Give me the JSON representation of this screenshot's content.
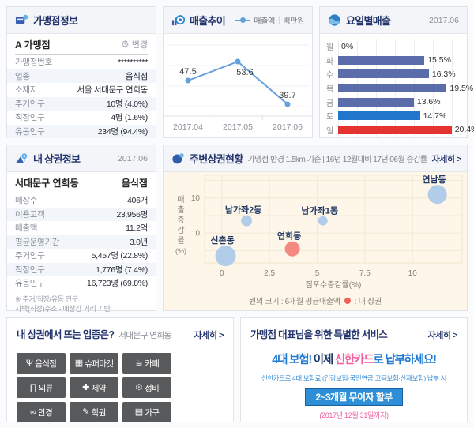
{
  "merchant_info": {
    "title": "가맹점정보",
    "store_name": "A 가맹점",
    "gear_glyph": "⚙",
    "change_label": "변경",
    "rows": [
      {
        "label": "가맹점번호",
        "value": "**********"
      },
      {
        "label": "업종",
        "value": "음식점"
      },
      {
        "label": "소재지",
        "value": "서울 서대문구 연희동"
      },
      {
        "label": "주거인구",
        "value": "10명 (4.0%)"
      },
      {
        "label": "직장인구",
        "value": "4명 (1.6%)"
      },
      {
        "label": "유동인구",
        "value": "234명 (94.4%)"
      }
    ]
  },
  "sales_trend": {
    "title": "매출추이",
    "legend_label": "매출액",
    "legend_separator": "|",
    "legend_unit": "백만원"
  },
  "weekday_sales": {
    "title": "요일별매출",
    "period": "2017.06"
  },
  "my_area": {
    "title": "내 상권정보",
    "period": "2017.06",
    "region": "서대문구 연희동",
    "category": "음식점",
    "rows": [
      {
        "label": "매장수",
        "value": "406개"
      },
      {
        "label": "이용고객",
        "value": "23,956명"
      },
      {
        "label": "매출액",
        "value": "11.2억"
      },
      {
        "label": "평균운영기간",
        "value": "3.0년"
      },
      {
        "label": "주거인구",
        "value": "5,457명 (22.8%)"
      },
      {
        "label": "직장인구",
        "value": "1,776명 (7.4%)"
      },
      {
        "label": "유동인구",
        "value": "16,723명 (69.8%)"
      }
    ],
    "footnote_line1": "※ 주거/직장/유동 인구 :",
    "footnote_line2": "자택(직장)주소 - 매장간 거리 기반"
  },
  "nearby": {
    "title": "주변상권현황",
    "subtitle": "가맹점 반경 1.5km 기준 | 16년 12월대비 17년 06월 증감률",
    "detail_label": "자세히 >"
  },
  "trending": {
    "title": "내 상권에서 뜨는 업종은?",
    "region": "서대문구 연희동",
    "detail_label": "자세히 >",
    "categories": [
      {
        "icon": "restaurant-icon",
        "glyph": "Ψ",
        "label": "음식점"
      },
      {
        "icon": "supermarket-icon",
        "glyph": "▦",
        "label": "슈퍼마켓"
      },
      {
        "icon": "cafe-icon",
        "glyph": "☕",
        "label": "카페"
      },
      {
        "icon": "clothing-icon",
        "glyph": "∏",
        "label": "의류"
      },
      {
        "icon": "pharmacy-icon",
        "glyph": "✚",
        "label": "제약"
      },
      {
        "icon": "repair-icon",
        "glyph": "⚙",
        "label": "정비"
      },
      {
        "icon": "glasses-icon",
        "glyph": "∞",
        "label": "안경"
      },
      {
        "icon": "academy-icon",
        "glyph": "✎",
        "label": "학원"
      },
      {
        "icon": "furniture-icon",
        "glyph": "▤",
        "label": "가구"
      }
    ]
  },
  "service_ad": {
    "title": "가맹점 대표님을 위한 특별한 서비스",
    "detail_label": "자세히 >",
    "headline_parts": [
      {
        "text": "4대 보험!",
        "color": "#1f7ad2"
      },
      {
        "text": " 이제 ",
        "color": "#1c3a6e"
      },
      {
        "text": "신한카드",
        "color": "#f0609e"
      },
      {
        "text": "로 ",
        "color": "#1f7ad2"
      },
      {
        "text": "납부하세요!",
        "color": "#1f7ad2"
      }
    ],
    "subline": "신한카드로 4대 보험료 (건강보험·국민연금·고용보험·산재보험) 납부 시",
    "badge": "2~3개월 무이자 할부",
    "period_note": "(2017년 12월 31일까지)"
  },
  "chart_data": [
    {
      "type": "line",
      "title": "매출추이",
      "unit": "백만원",
      "x": [
        "2017.04",
        "2017.05",
        "2017.06"
      ],
      "series": [
        {
          "name": "매출액",
          "values": [
            47.5,
            53.6,
            39.7
          ]
        }
      ],
      "line_color": "#64a0dc",
      "ylim": [
        37,
        57
      ],
      "grid": true
    },
    {
      "type": "bar",
      "title": "요일별매출",
      "period": "2017.06",
      "unit": "%",
      "orientation": "horizontal",
      "categories": [
        "월",
        "화",
        "수",
        "목",
        "금",
        "토",
        "일"
      ],
      "values": [
        0,
        15.5,
        16.3,
        19.5,
        13.6,
        14.7,
        20.4
      ],
      "bar_colors": [
        "#5b6caa",
        "#5b6caa",
        "#5b6caa",
        "#5b6caa",
        "#5b6caa",
        "#2277cc",
        "#e43331"
      ],
      "xlim": [
        0,
        22
      ]
    },
    {
      "type": "scatter",
      "title": "주변상권현황",
      "xlabel": "점포수증감률(%)",
      "ylabel": "매출증감률(%)",
      "xticks": [
        0,
        2.5,
        5,
        7.5,
        10
      ],
      "yticks": [
        10,
        0
      ],
      "xlim": [
        -0.9,
        12.6
      ],
      "ylim": [
        -8.5,
        16
      ],
      "size_note": "원의 크기 : 6개월 평균매출액",
      "my_area_note": ": 내 상권",
      "point_colors": {
        "other": "#a9c9e9",
        "my": "#f37d76"
      },
      "points": [
        {
          "name": "신촌동",
          "x": 0.2,
          "y": -6.5,
          "r": 13,
          "kind": "other"
        },
        {
          "name": "연희동",
          "x": 3.7,
          "y": -4.5,
          "r": 9.5,
          "kind": "my"
        },
        {
          "name": "남가좌2동",
          "x": 1.3,
          "y": 3.5,
          "r": 7,
          "kind": "other"
        },
        {
          "name": "남가좌1동",
          "x": 5.3,
          "y": 3.5,
          "r": 6,
          "kind": "other"
        },
        {
          "name": "연남동",
          "x": 11.3,
          "y": 11,
          "r": 12,
          "kind": "other"
        }
      ]
    }
  ]
}
